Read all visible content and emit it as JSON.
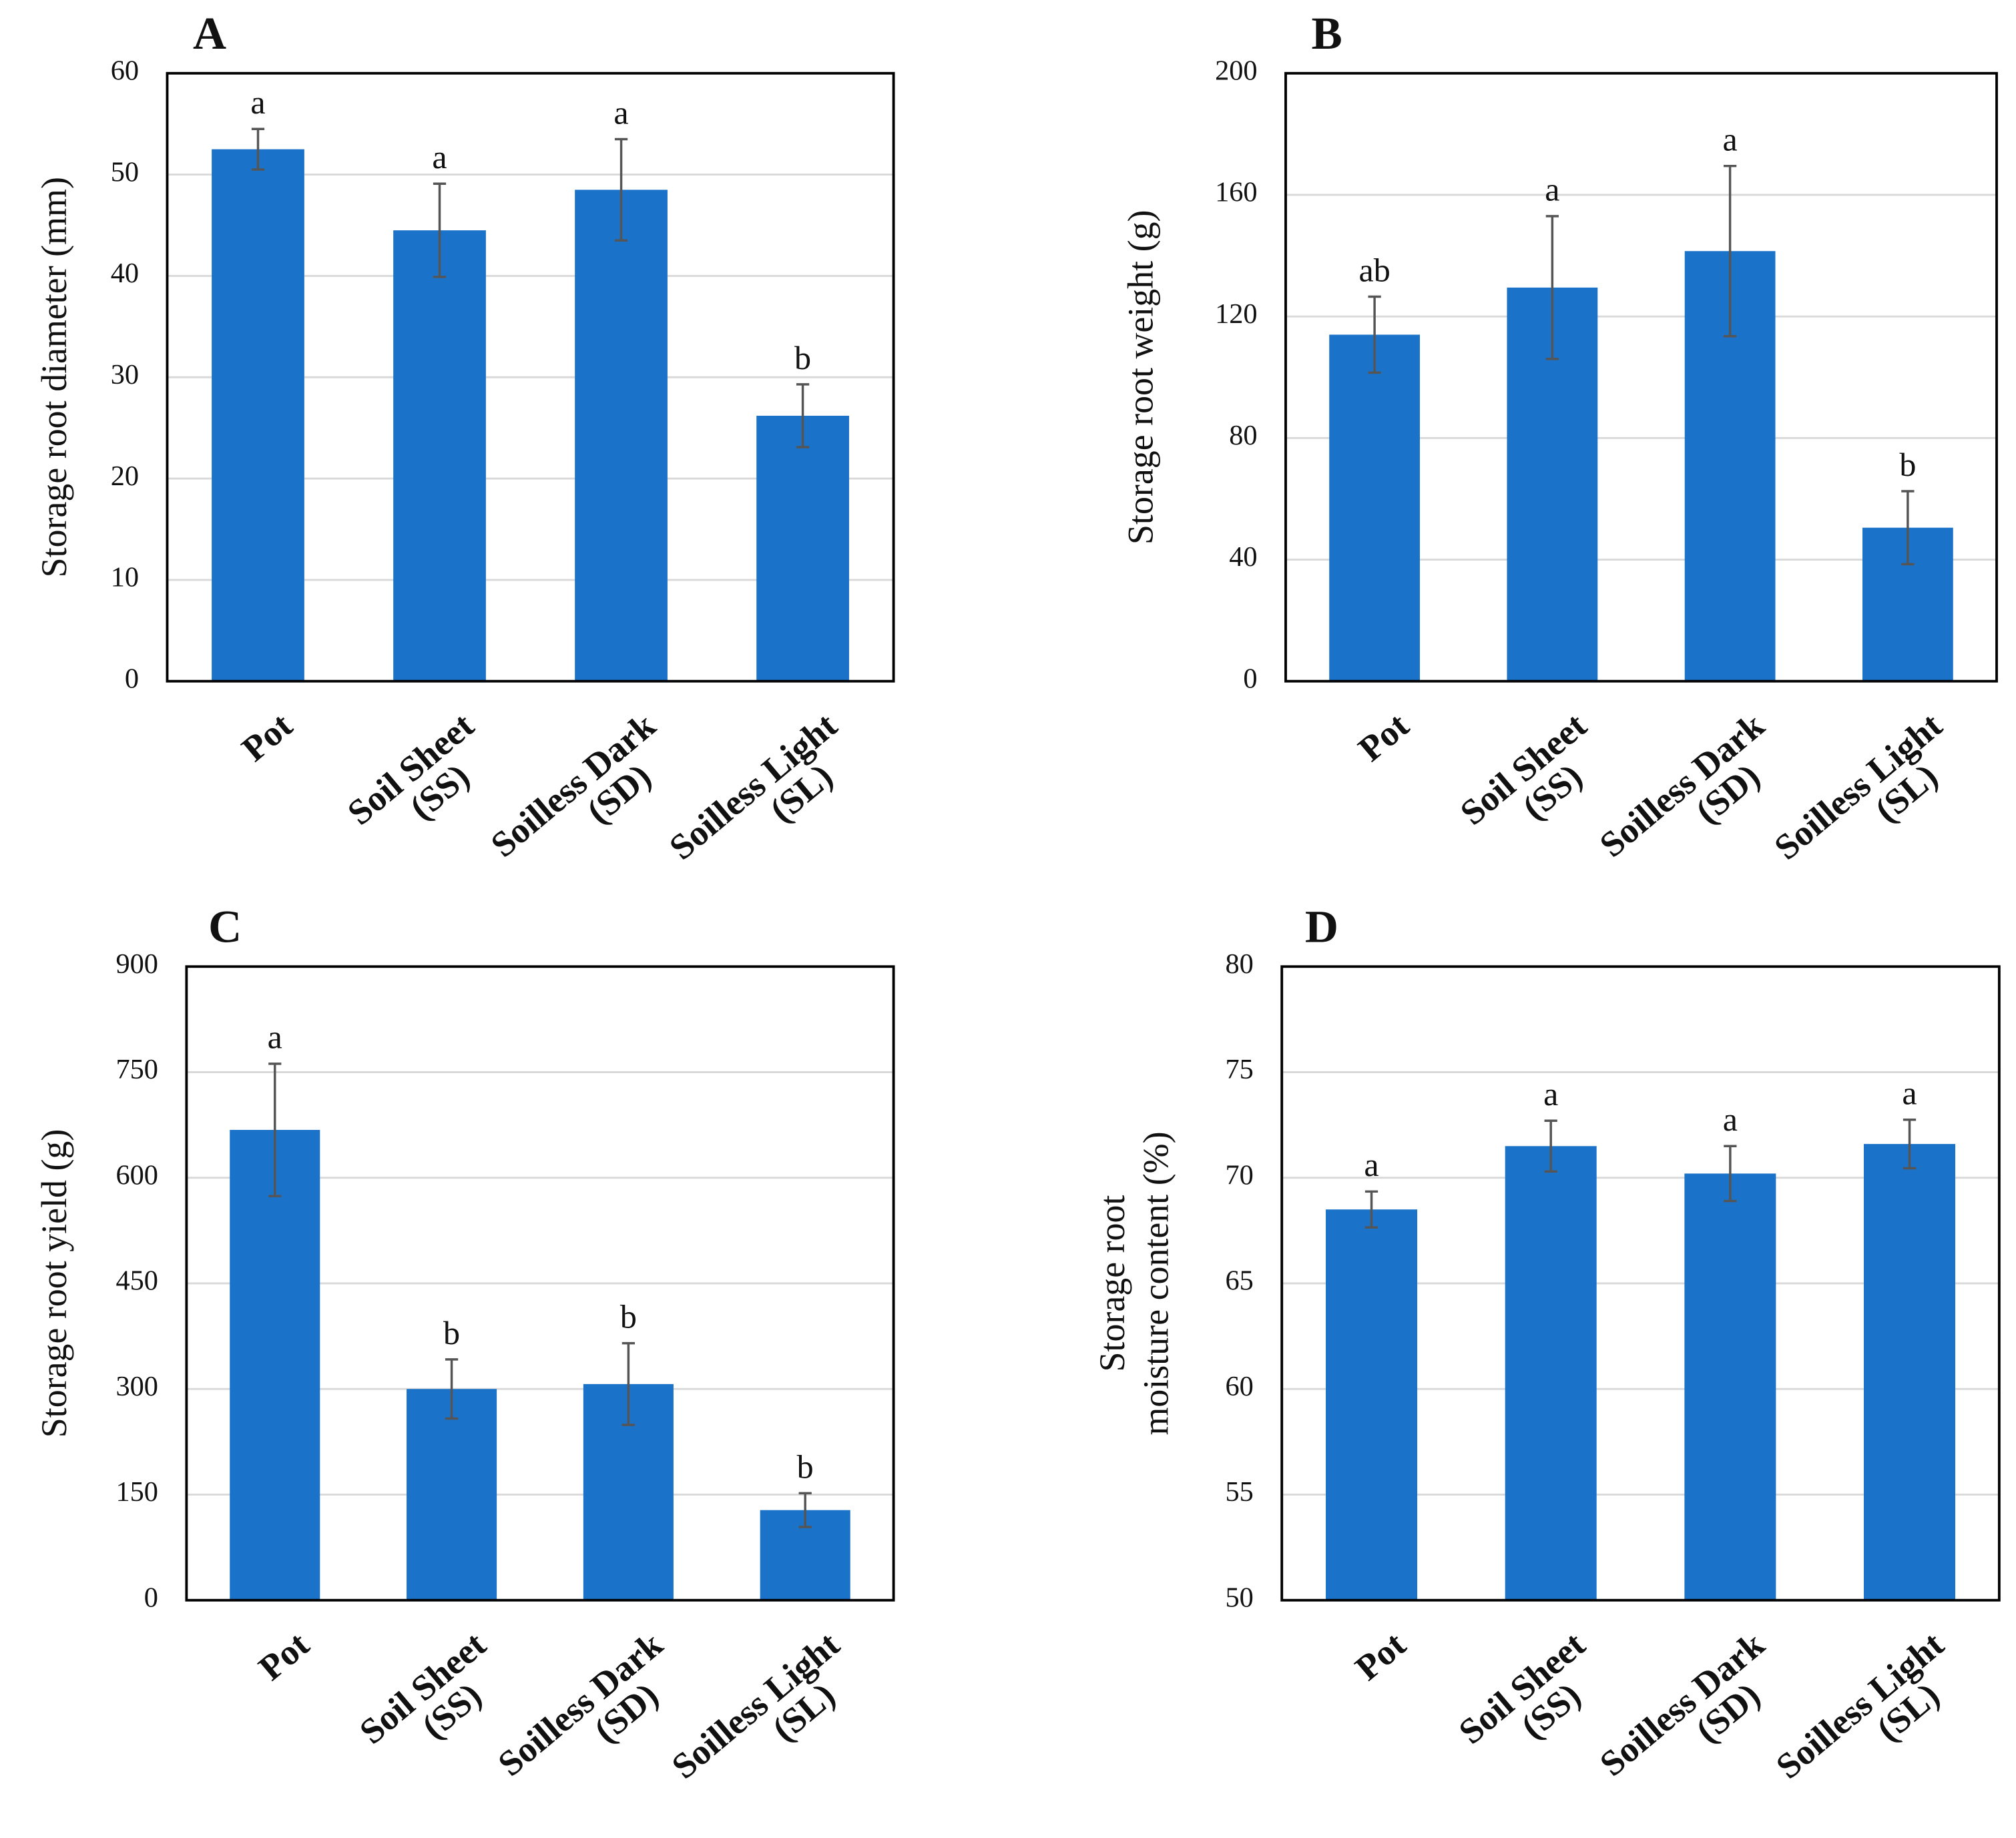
{
  "chart_data": [
    {
      "type": "bar",
      "label": "A",
      "ylabel": [
        "Storage root diameter (mm)"
      ],
      "categories": [
        [
          "Pot"
        ],
        [
          "Soil Sheet",
          "(SS)"
        ],
        [
          "Soilless Dark",
          "(SD)"
        ],
        [
          "Soilless Light",
          "(SL)"
        ]
      ],
      "values": [
        52.5,
        44.5,
        48.5,
        26.2
      ],
      "errors": [
        2.0,
        4.6,
        5.0,
        3.1
      ],
      "significance_letters": [
        "a",
        "a",
        "a",
        "b"
      ],
      "color": "#1b72c9",
      "ylim": [
        0,
        60
      ],
      "yticks": [
        0,
        10,
        20,
        30,
        40,
        50,
        60
      ],
      "grid": true
    },
    {
      "type": "bar",
      "label": "B",
      "ylabel": [
        "Storage root weight (g)"
      ],
      "categories": [
        [
          "Pot"
        ],
        [
          "Soil Sheet",
          "(SS)"
        ],
        [
          "Soilless Dark",
          "(SD)"
        ],
        [
          "Soilless Light",
          "(SL)"
        ]
      ],
      "values": [
        114,
        129.5,
        141.5,
        50.5
      ],
      "errors": [
        12.5,
        23.5,
        28,
        12
      ],
      "significance_letters": [
        "ab",
        "a",
        "a",
        "b"
      ],
      "color": "#1b72c9",
      "ylim": [
        0,
        200
      ],
      "yticks": [
        0,
        40,
        80,
        120,
        160,
        200
      ],
      "grid": true
    },
    {
      "type": "bar",
      "label": "C",
      "ylabel": [
        "Storage root yield (g)"
      ],
      "categories": [
        [
          "Pot"
        ],
        [
          "Soil Sheet",
          "(SS)"
        ],
        [
          "Soilless Dark",
          "(SD)"
        ],
        [
          "Soilless Light",
          "(SL)"
        ]
      ],
      "values": [
        668,
        300,
        307,
        128
      ],
      "errors": [
        94,
        42,
        58,
        24
      ],
      "significance_letters": [
        "a",
        "b",
        "b",
        "b"
      ],
      "color": "#1b72c9",
      "ylim": [
        0,
        900
      ],
      "yticks": [
        0,
        150,
        300,
        450,
        600,
        750,
        900
      ],
      "grid": true
    },
    {
      "type": "bar",
      "label": "D",
      "ylabel": [
        "Storage root",
        "moisture content (%)"
      ],
      "categories": [
        [
          "Pot"
        ],
        [
          "Soil Sheet",
          "(SS)"
        ],
        [
          "Soilless Dark",
          "(SD)"
        ],
        [
          "Soilless Light",
          "(SL)"
        ]
      ],
      "values": [
        68.5,
        71.5,
        70.2,
        71.6
      ],
      "errors": [
        0.85,
        1.2,
        1.3,
        1.15
      ],
      "significance_letters": [
        "a",
        "a",
        "a",
        "a"
      ],
      "color": "#1b72c9",
      "ylim": [
        50,
        80
      ],
      "yticks": [
        50,
        55,
        60,
        65,
        70,
        75,
        80
      ],
      "grid": true
    }
  ]
}
